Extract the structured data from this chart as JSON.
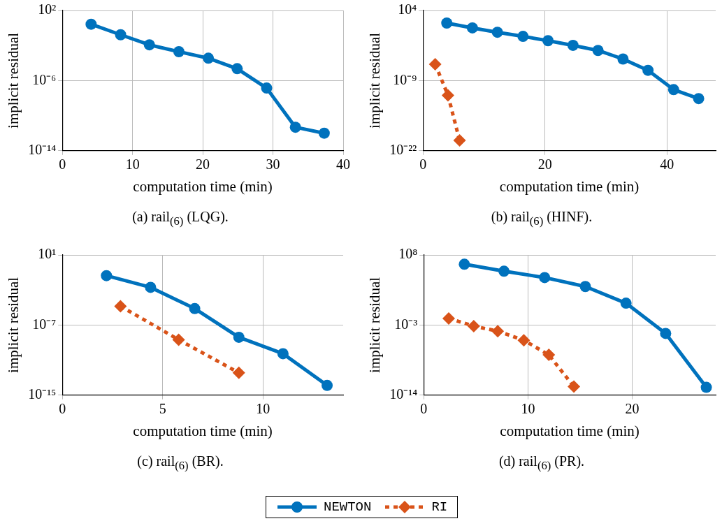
{
  "chart_data": [
    {
      "type": "line",
      "title": "(a) rail$_{(6)}$ (LQG).",
      "xlabel": "computation time (min)",
      "ylabel": "implicit residual",
      "log": "y",
      "grid": true,
      "legend": "bottom",
      "xlim": [
        0,
        40
      ],
      "xticks": [
        0,
        10,
        20,
        30,
        40
      ],
      "ylim": [
        1e-14,
        100
      ],
      "yticks": [
        {
          "value": 100,
          "label": "10²"
        },
        {
          "value": 1e-06,
          "label": "10⁻⁶"
        },
        {
          "value": 1e-14,
          "label": "10⁻¹⁴"
        }
      ],
      "series": [
        {
          "name": "NEWTON",
          "color": "#0072bd",
          "marker": "circle",
          "line_style": "solid",
          "x": [
            4.1,
            8.3,
            12.4,
            16.6,
            20.8,
            24.9,
            29.1,
            33.2,
            37.3
          ],
          "values": [
            2.7,
            0.17,
            0.012,
            0.002,
            0.00036,
            2.3e-05,
            1.4e-07,
            4.8e-12,
            1e-12
          ]
        }
      ]
    },
    {
      "type": "line",
      "title": "(b) rail$_{(6)}$ (HINF).",
      "xlabel": "computation time (min)",
      "ylabel": "implicit residual",
      "log": "y",
      "grid": true,
      "legend": "bottom",
      "xlim": [
        0,
        48
      ],
      "xticks": [
        0,
        20,
        40
      ],
      "ylim": [
        1e-22,
        10000
      ],
      "yticks": [
        {
          "value": 10000,
          "label": "10⁴"
        },
        {
          "value": 1e-09,
          "label": "10⁻⁹"
        },
        {
          "value": 1e-22,
          "label": "10⁻²²"
        }
      ],
      "series": [
        {
          "name": "NEWTON",
          "color": "#0072bd",
          "marker": "circle",
          "line_style": "solid",
          "x": [
            3.9,
            8.1,
            12.2,
            16.4,
            20.5,
            24.6,
            28.7,
            32.8,
            36.9,
            41.1,
            45.2
          ],
          "values": [
            47,
            5.9,
            0.91,
            0.16,
            0.025,
            0.0034,
            0.00039,
            1e-05,
            8e-08,
            2.1e-11,
            4.6e-13
          ]
        },
        {
          "name": "RI",
          "color": "#d95319",
          "marker": "diamond",
          "line_style": "dotted",
          "x": [
            2,
            4.1,
            6
          ],
          "values": [
            1.1e-06,
            1.9e-12,
            8e-21
          ]
        }
      ]
    },
    {
      "type": "line",
      "title": "(c) rail$_{(6)}$ (BR).",
      "xlabel": "computation time (min)",
      "ylabel": "implicit residual",
      "log": "y",
      "grid": true,
      "legend": "bottom",
      "xlim": [
        0,
        14
      ],
      "xticks": [
        0,
        5,
        10
      ],
      "ylim": [
        1e-15,
        10
      ],
      "yticks": [
        {
          "value": 10,
          "label": "10¹"
        },
        {
          "value": 1e-07,
          "label": "10⁻⁷"
        },
        {
          "value": 1e-15,
          "label": "10⁻¹⁵"
        }
      ],
      "series": [
        {
          "name": "NEWTON",
          "color": "#0072bd",
          "marker": "circle",
          "line_style": "solid",
          "x": [
            2.2,
            4.4,
            6.6,
            8.8,
            11,
            13.2
          ],
          "values": [
            0.043,
            0.002,
            7.6e-06,
            4e-09,
            5.4e-11,
            1.3e-14
          ]
        },
        {
          "name": "RI",
          "color": "#d95319",
          "marker": "diamond",
          "line_style": "dotted",
          "x": [
            2.9,
            5.8,
            8.8
          ],
          "values": [
            1.4e-05,
            2.1e-09,
            3.6e-13
          ]
        }
      ]
    },
    {
      "type": "line",
      "title": "(d) rail$_{(6)}$ (PR).",
      "xlabel": "computation time (min)",
      "ylabel": "implicit residual",
      "log": "y",
      "grid": true,
      "legend": "bottom",
      "xlim": [
        0,
        28
      ],
      "xticks": [
        0,
        10,
        20
      ],
      "ylim": [
        1e-14,
        100000000.0
      ],
      "yticks": [
        {
          "value": 100000000.0,
          "label": "10⁸"
        },
        {
          "value": 0.001,
          "label": "10⁻³"
        },
        {
          "value": 1e-14,
          "label": "10⁻¹⁴"
        }
      ],
      "series": [
        {
          "name": "NEWTON",
          "color": "#0072bd",
          "marker": "circle",
          "line_style": "solid",
          "x": [
            3.9,
            7.7,
            11.6,
            15.5,
            19.4,
            23.2,
            27.1
          ],
          "values": [
            3500000.0,
            280000.0,
            28000.0,
            1100,
            2.7,
            4.8e-05,
            1.7e-13
          ]
        },
        {
          "name": "RI",
          "color": "#d95319",
          "marker": "diamond",
          "line_style": "dotted",
          "x": [
            2.4,
            4.8,
            7.1,
            9.6,
            12,
            14.4
          ],
          "values": [
            0.011,
            0.00068,
            0.00011,
            4.1e-06,
            2.1e-08,
            2.2e-13
          ]
        }
      ]
    }
  ]
}
